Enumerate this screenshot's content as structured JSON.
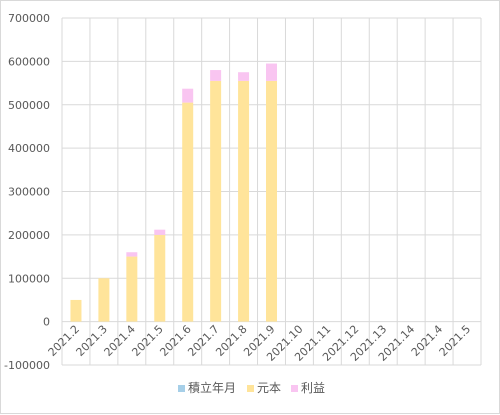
{
  "chart_data": {
    "type": "bar",
    "stacked": true,
    "title": "",
    "xlabel": "",
    "ylabel": "",
    "ylim": [
      -100000,
      700000
    ],
    "ytick_step": 100000,
    "yticks": [
      "-100000",
      "0",
      "100000",
      "200000",
      "300000",
      "400000",
      "500000",
      "600000",
      "700000"
    ],
    "grid": "both",
    "legend_position": "bottom",
    "categories": [
      "2021.2",
      "2021.3",
      "2021.4",
      "2021.5",
      "2021.6",
      "2021.7",
      "2021.8",
      "2021.9",
      "2021.10",
      "2021.11",
      "2021.12",
      "2021.13",
      "2021.14",
      "2021.4",
      "2021.5"
    ],
    "series": [
      {
        "name": "積立年月",
        "color": "#a6cfe8",
        "values": [
          0,
          0,
          0,
          0,
          0,
          0,
          0,
          0,
          null,
          null,
          null,
          null,
          null,
          null,
          null
        ]
      },
      {
        "name": "元本",
        "color": "#ffe49a",
        "values": [
          50000,
          100000,
          150000,
          200000,
          505000,
          555000,
          555000,
          555000,
          null,
          null,
          null,
          null,
          null,
          null,
          null
        ]
      },
      {
        "name": "利益",
        "color": "#f9c5f1",
        "values": [
          0,
          0,
          10000,
          12000,
          32000,
          25000,
          20000,
          40000,
          null,
          null,
          null,
          null,
          null,
          null,
          null
        ]
      }
    ]
  }
}
